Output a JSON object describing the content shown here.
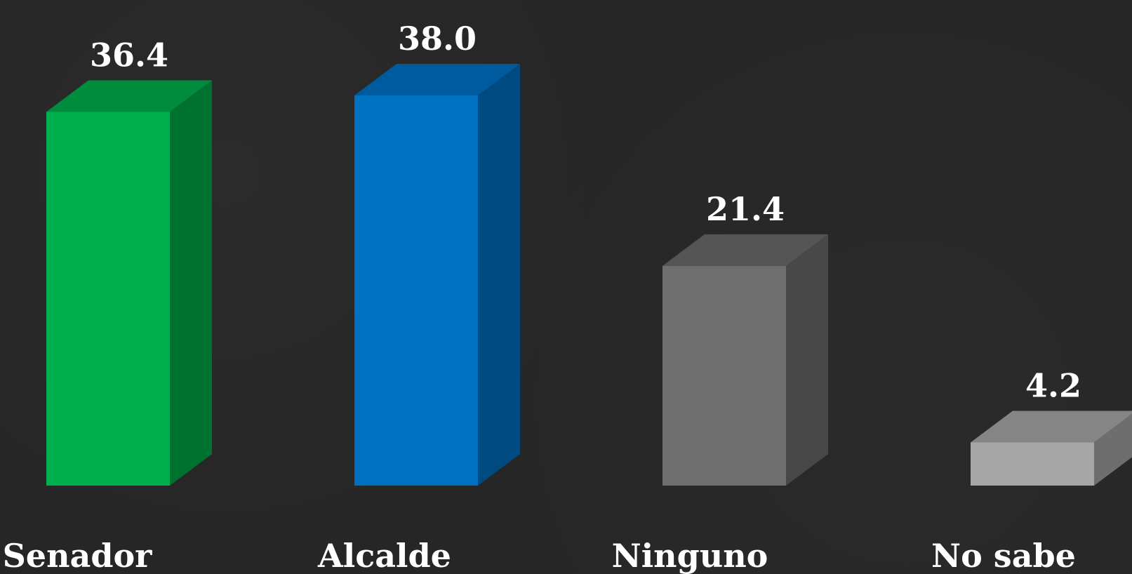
{
  "chart_data": {
    "type": "bar",
    "categories": [
      "Senador",
      "Alcalde",
      "Ninguno",
      "No sabe"
    ],
    "values": [
      36.4,
      38.0,
      21.4,
      4.2
    ],
    "value_labels": [
      "36.4",
      "38.0",
      "21.4",
      "4.2"
    ],
    "style": "3d",
    "grid": false,
    "legend": "none",
    "ylim": [
      0,
      40
    ]
  },
  "colors": {
    "background": "#262626",
    "bars": [
      {
        "front": "#00b04f",
        "top": "#008c3c",
        "side": "#00722f"
      },
      {
        "front": "#0070c0",
        "top": "#005b9e",
        "side": "#004a82"
      },
      {
        "front": "#6f6f6f",
        "top": "#555555",
        "side": "#484848"
      },
      {
        "front": "#a6a6a6",
        "top": "#858585",
        "side": "#6e6e6e"
      }
    ]
  }
}
